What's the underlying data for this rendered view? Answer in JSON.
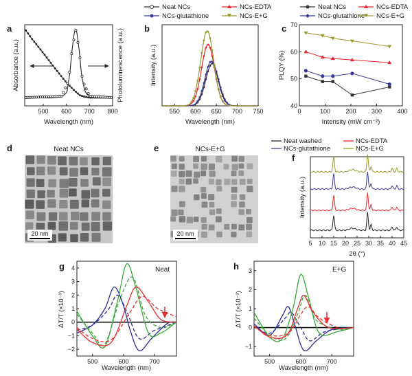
{
  "panels": {
    "a": {
      "label": "a",
      "xlabel": "Wavelength (nm)",
      "ylabel_left": "Absorbance (a.u.)",
      "ylabel_right": "Photoluminescence (a.u.)",
      "xticks": [
        "500",
        "600",
        "700",
        "800"
      ]
    },
    "b": {
      "label": "b",
      "xlabel": "Wavelength (nm)",
      "ylabel": "Intensity (a.u.)",
      "xticks": [
        "550",
        "600",
        "650",
        "700",
        "750"
      ]
    },
    "c": {
      "label": "c",
      "xlabel": "Intensity (mW cm⁻²)",
      "ylabel": "PLQY (%)",
      "xticks": [
        "0",
        "100",
        "200",
        "300",
        "400"
      ],
      "yticks": [
        "40",
        "50",
        "60",
        "70"
      ]
    },
    "d": {
      "label": "d",
      "title": "Neat NCs",
      "scalebar": "20 nm"
    },
    "e": {
      "label": "e",
      "title": "NCs-E+G",
      "scalebar": "20 nm"
    },
    "f": {
      "label": "f",
      "xlabel": "2θ (°)",
      "ylabel": "Intensity (a.u.)",
      "xticks": [
        "5",
        "10",
        "15",
        "20",
        "25",
        "30",
        "35",
        "40",
        "45"
      ]
    },
    "g": {
      "label": "g",
      "tag": "Neat",
      "xlabel": "Wavelength (nm)",
      "ylabel": "ΔT/T (×10⁻³)",
      "xticks": [
        "500",
        "600",
        "700"
      ],
      "yticks": [
        "4",
        "3",
        "2",
        "1",
        "0",
        "−1",
        "−2"
      ]
    },
    "h": {
      "label": "h",
      "tag": "E+G",
      "xlabel": "Wavelength (nm)",
      "ylabel": "ΔT/T (×10⁻³)",
      "xticks": [
        "500",
        "600",
        "700"
      ],
      "yticks": [
        "3",
        "2",
        "1",
        "0",
        "−1"
      ]
    }
  },
  "legend_bc": [
    {
      "label": "Neat NCs",
      "color": "#333333",
      "marker": "circle"
    },
    {
      "label": "NCs-EDTA",
      "color": "#e8262b",
      "marker": "triangle"
    },
    {
      "label": "NCs-glutathione",
      "color": "#3a3a9e",
      "marker": "diamond"
    },
    {
      "label": "NCs-E+G",
      "color": "#9a9a2a",
      "marker": "triangle-down"
    }
  ],
  "legend_f": [
    {
      "label": "Neat washed",
      "color": "#222222"
    },
    {
      "label": "NCs-EDTA",
      "color": "#e8262b"
    },
    {
      "label": "NCs-glutathione",
      "color": "#3a3a9e"
    },
    {
      "label": "NCs-E+G",
      "color": "#9a9a2a"
    }
  ],
  "chart_data": [
    {
      "panel": "a",
      "type": "line",
      "xlim": [
        420,
        800
      ],
      "series": [
        {
          "values": [
            [
              420,
              1.0
            ],
            [
              450,
              0.86
            ],
            [
              500,
              0.65
            ],
            [
              550,
              0.43
            ],
            [
              600,
              0.22
            ],
            [
              630,
              0.12
            ],
            [
              660,
              0.03
            ],
            [
              700,
              0.0
            ],
            [
              800,
              0.0
            ]
          ]
        },
        {
          "values": [
            [
              420,
              0.0
            ],
            [
              580,
              0.02
            ],
            [
              610,
              0.25
            ],
            [
              625,
              0.7
            ],
            [
              640,
              1.0
            ],
            [
              655,
              0.7
            ],
            [
              670,
              0.25
            ],
            [
              700,
              0.02
            ],
            [
              800,
              0.0
            ]
          ]
        }
      ]
    },
    {
      "panel": "b",
      "type": "line",
      "xlim": [
        520,
        750
      ],
      "series": [
        {
          "name": "Neat NCs",
          "peak": 640,
          "height": 0.56
        },
        {
          "name": "NCs-EDTA",
          "peak": 630,
          "height": 0.81
        },
        {
          "name": "NCs-glutathione",
          "peak": 638,
          "height": 0.59
        },
        {
          "name": "NCs-E+G",
          "peak": 628,
          "height": 0.99
        }
      ]
    },
    {
      "panel": "c",
      "type": "line",
      "xlim": [
        0,
        400
      ],
      "ylim": [
        40,
        70
      ],
      "x": [
        25,
        90,
        130,
        205,
        350
      ],
      "series": [
        {
          "name": "Neat NCs",
          "values": [
            51,
            49,
            49,
            44,
            47
          ]
        },
        {
          "name": "NCs-EDTA",
          "values": [
            60,
            58,
            57.5,
            57,
            56
          ]
        },
        {
          "name": "NCs-glutathione",
          "values": [
            53,
            51,
            51,
            52,
            48
          ]
        },
        {
          "name": "NCs-E+G",
          "values": [
            67,
            66,
            65,
            64,
            62
          ]
        }
      ]
    },
    {
      "panel": "f",
      "type": "line",
      "xlim": [
        5,
        45
      ],
      "series": [
        {
          "name": "Neat washed",
          "peaks": [
            15,
            29.5,
            31,
            40,
            42
          ]
        },
        {
          "name": "NCs-EDTA",
          "peaks": [
            15,
            29.5,
            31,
            40,
            42
          ]
        },
        {
          "name": "NCs-glutathione",
          "peaks": [
            15,
            29.5,
            31,
            40,
            42
          ]
        },
        {
          "name": "NCs-E+G",
          "peaks": [
            15,
            29.5,
            31,
            40,
            42
          ]
        }
      ]
    },
    {
      "panel": "g",
      "type": "line",
      "xlim": [
        450,
        770
      ],
      "ylim": [
        -2.5,
        4.5
      ],
      "series": [
        {
          "color": "#2b2b9a",
          "style": "solid",
          "values": [
            [
              450,
              -0.8
            ],
            [
              500,
              -0.2
            ],
            [
              540,
              1.0
            ],
            [
              570,
              2.6
            ],
            [
              600,
              1.2
            ],
            [
              620,
              -0.5
            ],
            [
              650,
              -2.1
            ],
            [
              690,
              -1.2
            ],
            [
              740,
              -0.1
            ],
            [
              770,
              0
            ]
          ]
        },
        {
          "color": "#2b2b9a",
          "style": "dashed",
          "values": [
            [
              450,
              -0.6
            ],
            [
              500,
              -0.2
            ],
            [
              550,
              0.9
            ],
            [
              580,
              2.0
            ],
            [
              610,
              0.8
            ],
            [
              650,
              -1.2
            ],
            [
              700,
              -0.6
            ],
            [
              770,
              0
            ]
          ]
        },
        {
          "color": "#3aa83a",
          "style": "solid",
          "values": [
            [
              450,
              0.8
            ],
            [
              500,
              -1.0
            ],
            [
              540,
              -1.8
            ],
            [
              580,
              1.5
            ],
            [
              610,
              4.3
            ],
            [
              640,
              2.5
            ],
            [
              680,
              -0.8
            ],
            [
              720,
              -0.8
            ],
            [
              770,
              0
            ]
          ]
        },
        {
          "color": "#3aa83a",
          "style": "dashed",
          "values": [
            [
              450,
              0.6
            ],
            [
              500,
              -0.8
            ],
            [
              540,
              -1.6
            ],
            [
              590,
              1.8
            ],
            [
              630,
              3.3
            ],
            [
              670,
              0.5
            ],
            [
              720,
              -0.4
            ],
            [
              770,
              0
            ]
          ]
        },
        {
          "color": "#e53030",
          "style": "solid",
          "values": [
            [
              450,
              -0.5
            ],
            [
              500,
              -1.5
            ],
            [
              560,
              -1.5
            ],
            [
              610,
              1.2
            ],
            [
              640,
              2.6
            ],
            [
              680,
              1.5
            ],
            [
              720,
              0.2
            ],
            [
              770,
              0
            ]
          ]
        },
        {
          "color": "#e53030",
          "style": "dashed",
          "values": [
            [
              450,
              -0.4
            ],
            [
              500,
              -1.2
            ],
            [
              560,
              -1.3
            ],
            [
              620,
              0.7
            ],
            [
              660,
              1.9
            ],
            [
              710,
              1.0
            ],
            [
              770,
              0.4
            ]
          ]
        }
      ]
    },
    {
      "panel": "h",
      "type": "line",
      "xlim": [
        450,
        770
      ],
      "ylim": [
        -1.5,
        3.5
      ],
      "series": [
        {
          "color": "#2b2b9a",
          "style": "solid",
          "values": [
            [
              450,
              0.2
            ],
            [
              500,
              -0.4
            ],
            [
              540,
              0.6
            ],
            [
              560,
              1.1
            ],
            [
              580,
              0.2
            ],
            [
              610,
              -1.2
            ],
            [
              650,
              -0.7
            ],
            [
              700,
              -0.1
            ],
            [
              770,
              0
            ]
          ]
        },
        {
          "color": "#2b2b9a",
          "style": "dashed",
          "values": [
            [
              450,
              0.1
            ],
            [
              500,
              -0.3
            ],
            [
              550,
              0.5
            ],
            [
              570,
              0.8
            ],
            [
              600,
              0.0
            ],
            [
              630,
              -0.7
            ],
            [
              680,
              -0.2
            ],
            [
              770,
              0
            ]
          ]
        },
        {
          "color": "#3aa83a",
          "style": "solid",
          "values": [
            [
              450,
              0.8
            ],
            [
              500,
              -0.5
            ],
            [
              540,
              -0.6
            ],
            [
              575,
              1.0
            ],
            [
              600,
              2.8
            ],
            [
              625,
              1.6
            ],
            [
              660,
              -0.3
            ],
            [
              720,
              -0.2
            ],
            [
              770,
              0
            ]
          ]
        },
        {
          "color": "#3aa83a",
          "style": "dashed",
          "values": [
            [
              450,
              0.5
            ],
            [
              500,
              -0.4
            ],
            [
              550,
              -0.6
            ],
            [
              590,
              0.7
            ],
            [
              615,
              1.7
            ],
            [
              650,
              0.4
            ],
            [
              720,
              -0.1
            ],
            [
              770,
              0
            ]
          ]
        },
        {
          "color": "#e53030",
          "style": "solid",
          "values": [
            [
              450,
              0.1
            ],
            [
              500,
              -0.5
            ],
            [
              555,
              -0.4
            ],
            [
              590,
              1.0
            ],
            [
              610,
              1.7
            ],
            [
              640,
              0.8
            ],
            [
              690,
              0.0
            ],
            [
              770,
              0
            ]
          ]
        },
        {
          "color": "#e53030",
          "style": "dashed",
          "values": [
            [
              450,
              0.05
            ],
            [
              500,
              -0.4
            ],
            [
              560,
              -0.3
            ],
            [
              600,
              0.7
            ],
            [
              625,
              1.1
            ],
            [
              660,
              0.5
            ],
            [
              720,
              0.0
            ],
            [
              770,
              0
            ]
          ]
        }
      ]
    }
  ]
}
